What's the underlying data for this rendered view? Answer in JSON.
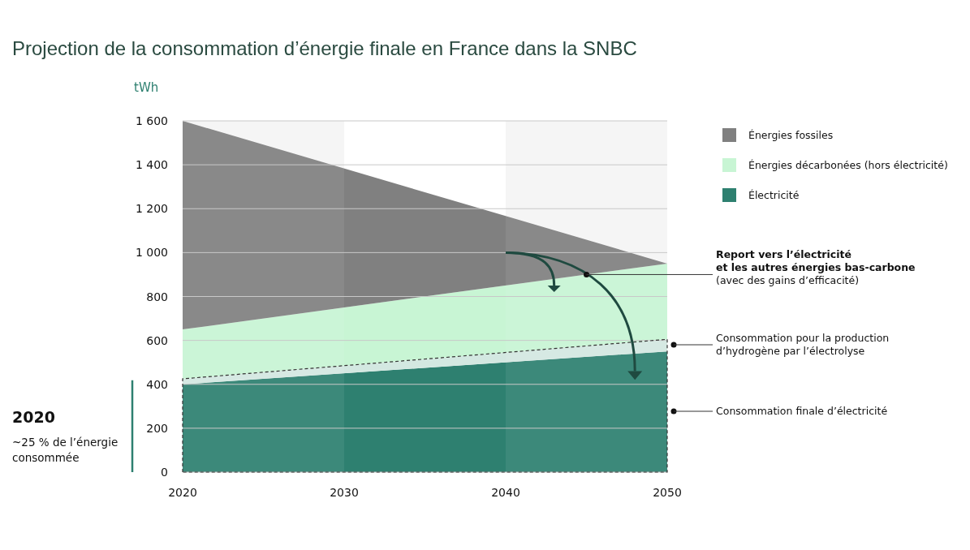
{
  "chart_data": {
    "type": "area",
    "stacked": true,
    "title": "Projection de la consommation d’énergie finale en France dans la SNBC",
    "ylabel": "tWh",
    "x": [
      2020,
      2050
    ],
    "xlim": [
      2020,
      2050
    ],
    "xticks": [
      2020,
      2030,
      2040,
      2050
    ],
    "ylim": [
      0,
      1600
    ],
    "yticks": [
      0,
      200,
      400,
      600,
      800,
      {
        "value": 1000,
        "label": "1 000"
      },
      {
        "value": 1200,
        "label": "1 200"
      },
      {
        "value": 1400,
        "label": "1 400"
      },
      {
        "value": 1600,
        "label": "1 600"
      }
    ],
    "grid": "y",
    "legend": "top right",
    "series": [
      {
        "name": "Électricité",
        "color": "#2e8070",
        "values": [
          400,
          550
        ]
      },
      {
        "color": "#d3e8e1",
        "values": [
          25,
          55
        ],
        "line_style": "dashed"
      },
      {
        "name": "Énergies décarbonées (hors électricité)",
        "color": "#c8f5d4",
        "values": [
          225,
          345
        ]
      },
      {
        "name": "Énergies fossiles",
        "color": "#808080",
        "values": [
          950,
          0
        ]
      }
    ],
    "bands": [
      {
        "axis": "x",
        "from": 2020,
        "to": 2030,
        "color": "#f5f5f5"
      },
      {
        "axis": "x",
        "from": 2040,
        "to": 2050,
        "color": "#f5f5f5"
      }
    ],
    "annotations": [
      {
        "text": "Report vers l’électricité\net les autres énergies bas-carbone\n(avec des gains d’efficacité)",
        "x": 2045,
        "y": 900
      },
      "Consommation pour la production\nd’hydrogène par l’électrolyse",
      "Consommation finale d’électricité",
      "2020",
      "~25 % de l’énergie\nconsommée"
    ]
  }
}
